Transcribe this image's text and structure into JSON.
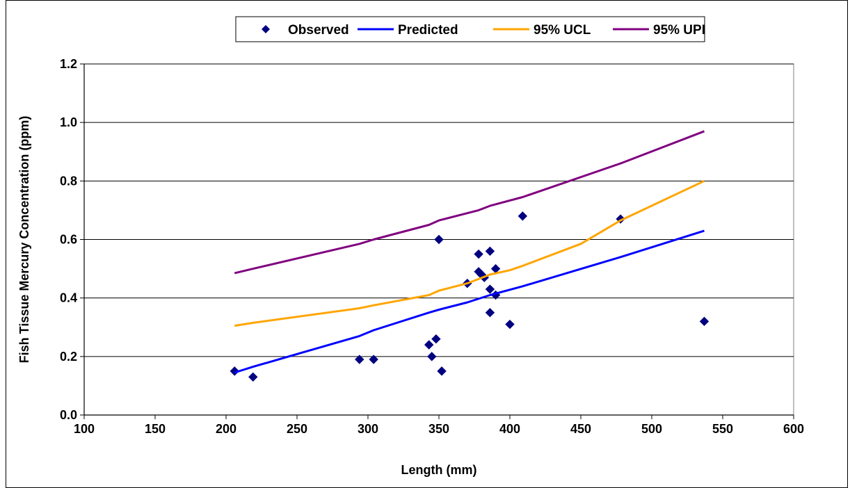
{
  "chart_data": {
    "type": "scatter",
    "xlabel": "Length (mm)",
    "ylabel": "Fish Tissue Mercury Concentration (ppm)",
    "xlim": [
      100,
      600
    ],
    "ylim": [
      0,
      1.2
    ],
    "x_ticks": [
      "100",
      "150",
      "200",
      "250",
      "300",
      "350",
      "400",
      "450",
      "500",
      "550",
      "600"
    ],
    "y_ticks": [
      "0.0",
      "0.2",
      "0.4",
      "0.6",
      "0.8",
      "1.0",
      "1.2"
    ],
    "grid": "horizontal",
    "legend_position": "top",
    "series": [
      {
        "name": "Observed",
        "kind": "scatter",
        "marker": "diamond",
        "color": "#000080",
        "points": [
          [
            206,
            0.15
          ],
          [
            219,
            0.13
          ],
          [
            294,
            0.19
          ],
          [
            304,
            0.19
          ],
          [
            343,
            0.24
          ],
          [
            345,
            0.2
          ],
          [
            348,
            0.26
          ],
          [
            350,
            0.6
          ],
          [
            352,
            0.15
          ],
          [
            370,
            0.45
          ],
          [
            378,
            0.55
          ],
          [
            378,
            0.49
          ],
          [
            380,
            0.48
          ],
          [
            382,
            0.47
          ],
          [
            386,
            0.43
          ],
          [
            386,
            0.56
          ],
          [
            386,
            0.35
          ],
          [
            390,
            0.41
          ],
          [
            390,
            0.5
          ],
          [
            400,
            0.31
          ],
          [
            409,
            0.68
          ],
          [
            478,
            0.67
          ],
          [
            537,
            0.32
          ]
        ]
      },
      {
        "name": "Predicted",
        "kind": "line",
        "color": "#0000ff",
        "points": [
          [
            206,
            0.145
          ],
          [
            219,
            0.165
          ],
          [
            294,
            0.27
          ],
          [
            304,
            0.29
          ],
          [
            343,
            0.35
          ],
          [
            350,
            0.36
          ],
          [
            370,
            0.385
          ],
          [
            386,
            0.41
          ],
          [
            409,
            0.44
          ],
          [
            478,
            0.54
          ],
          [
            537,
            0.63
          ]
        ]
      },
      {
        "name": "95% UCL",
        "kind": "line",
        "color": "#ffa500",
        "points": [
          [
            206,
            0.305
          ],
          [
            219,
            0.315
          ],
          [
            294,
            0.365
          ],
          [
            304,
            0.375
          ],
          [
            343,
            0.41
          ],
          [
            350,
            0.425
          ],
          [
            370,
            0.45
          ],
          [
            386,
            0.48
          ],
          [
            400,
            0.495
          ],
          [
            409,
            0.51
          ],
          [
            450,
            0.585
          ],
          [
            478,
            0.665
          ],
          [
            537,
            0.8
          ]
        ]
      },
      {
        "name": "95% UPI",
        "kind": "line",
        "color": "#800080",
        "points": [
          [
            206,
            0.485
          ],
          [
            219,
            0.5
          ],
          [
            294,
            0.585
          ],
          [
            304,
            0.6
          ],
          [
            343,
            0.65
          ],
          [
            350,
            0.665
          ],
          [
            378,
            0.7
          ],
          [
            386,
            0.715
          ],
          [
            409,
            0.745
          ],
          [
            478,
            0.86
          ],
          [
            537,
            0.97
          ]
        ]
      }
    ]
  }
}
